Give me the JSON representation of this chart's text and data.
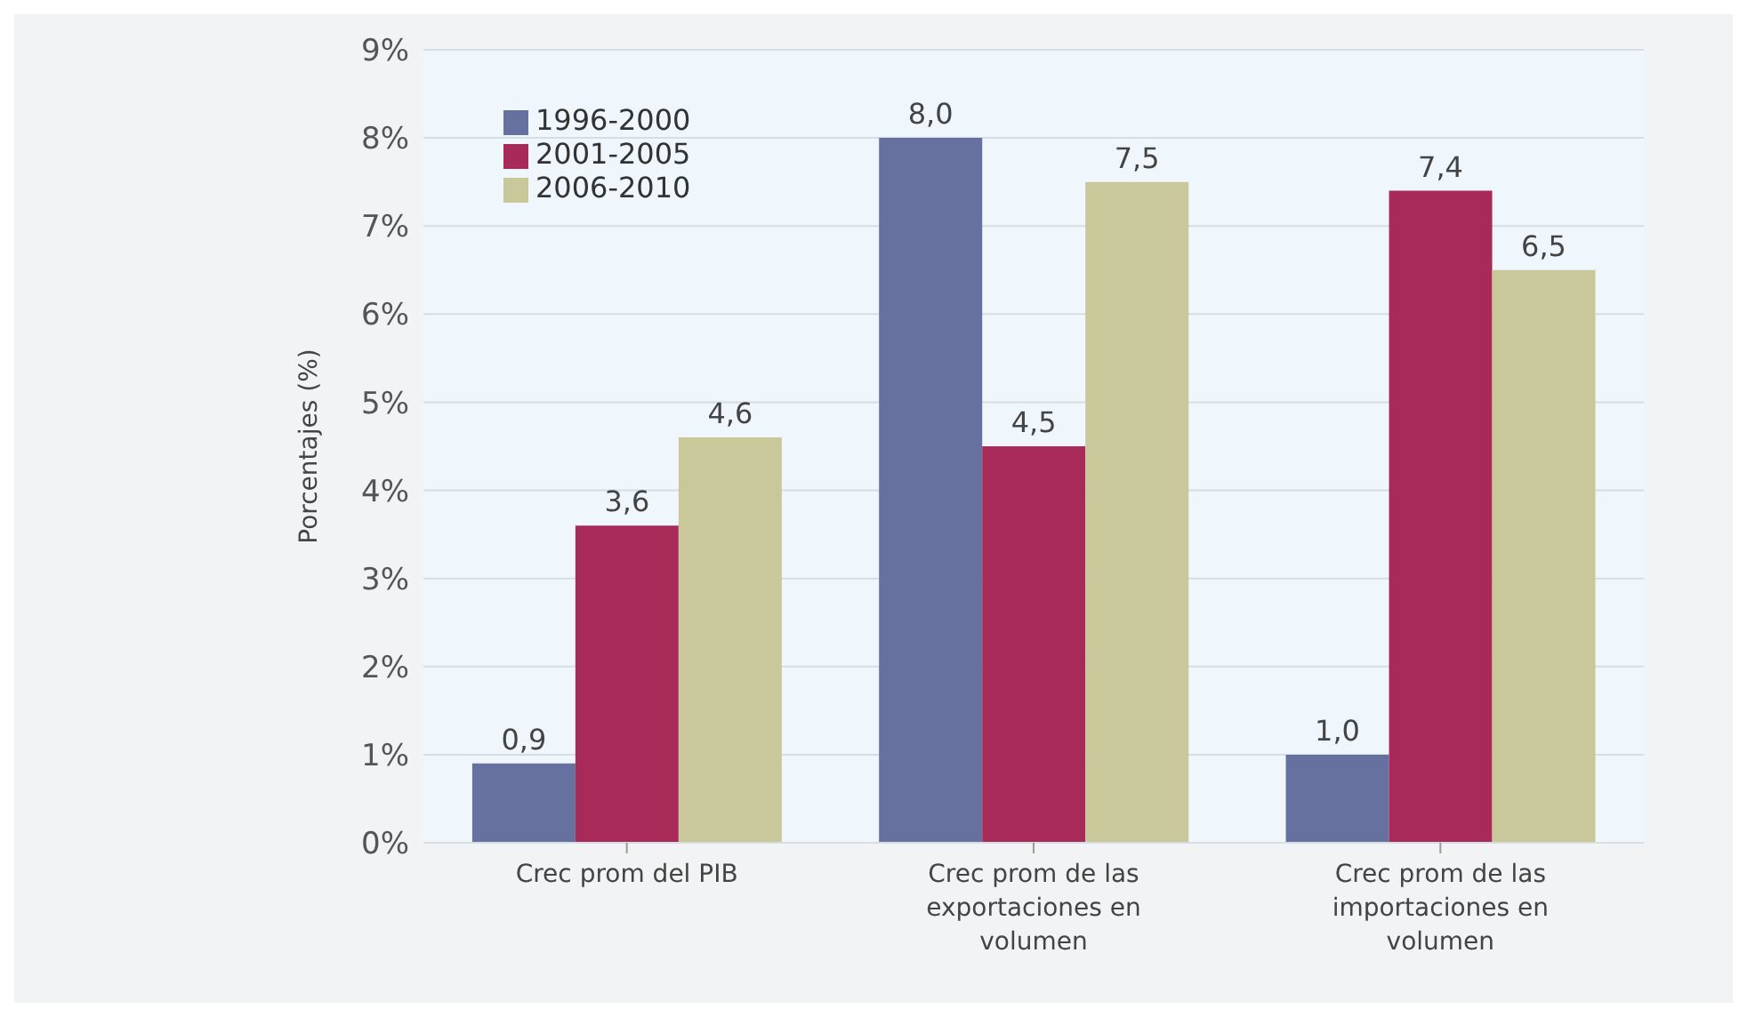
{
  "chart_data": {
    "type": "bar",
    "ylabel": "Porcentajes (%)",
    "categories": [
      "Crec prom del PIB",
      "Crec prom de las exportaciones en volumen",
      "Crec prom de las importaciones en volumen"
    ],
    "series": [
      {
        "name": "1996-2000",
        "color": "#66719f",
        "values": [
          0.9,
          8.0,
          1.0
        ],
        "value_labels": [
          "0,9",
          "8,0",
          "1,0"
        ]
      },
      {
        "name": "2001-2005",
        "color": "#a82a58",
        "values": [
          3.6,
          4.5,
          7.4
        ],
        "value_labels": [
          "3,6",
          "4,5",
          "7,4"
        ]
      },
      {
        "name": "2006-2010",
        "color": "#c9c89a",
        "values": [
          4.6,
          7.5,
          6.5
        ],
        "value_labels": [
          "4,6",
          "7,5",
          "6,5"
        ]
      }
    ],
    "ylim": [
      0,
      9
    ],
    "yticks": [
      {
        "value": 0,
        "label": "0%"
      },
      {
        "value": 1,
        "label": "1%"
      },
      {
        "value": 2,
        "label": "2%"
      },
      {
        "value": 3,
        "label": "3%"
      },
      {
        "value": 4,
        "label": "4%"
      },
      {
        "value": 5,
        "label": "5%"
      },
      {
        "value": 6,
        "label": "6%"
      },
      {
        "value": 7,
        "label": "7%"
      },
      {
        "value": 8,
        "label": "8%"
      },
      {
        "value": 9,
        "label": "9%"
      }
    ],
    "grid": "y",
    "legend": "top left"
  }
}
